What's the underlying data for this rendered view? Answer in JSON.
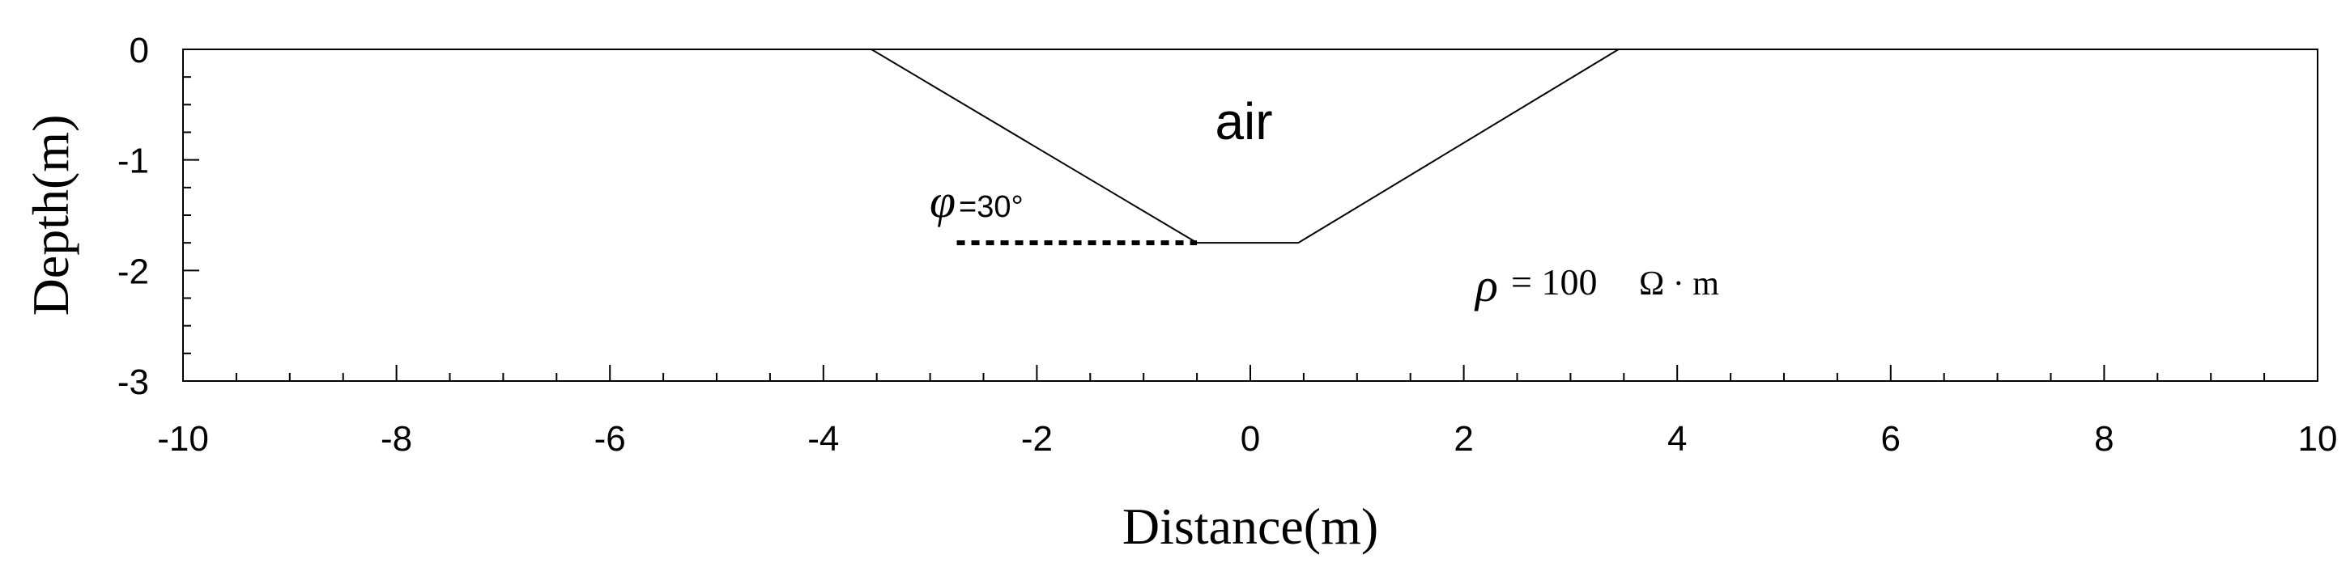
{
  "figure": {
    "xlabel": "Distance(m)",
    "ylabel": "Depth(m)",
    "xlim": [
      -10,
      10
    ],
    "ylim": [
      -3,
      0
    ],
    "x_ticks": [
      -10,
      -8,
      -6,
      -4,
      -2,
      0,
      2,
      4,
      6,
      8,
      10
    ],
    "y_ticks": [
      0,
      -1,
      -2,
      -3
    ],
    "x_minor_step": 0.5,
    "y_minor_step": 0.25,
    "surface_profile": [
      {
        "x": -10,
        "y": 0
      },
      {
        "x": -3.55,
        "y": 0
      },
      {
        "x": -0.5,
        "y": -1.75
      },
      {
        "x": 0.45,
        "y": -1.75
      },
      {
        "x": 3.45,
        "y": 0
      },
      {
        "x": 10,
        "y": 0
      }
    ],
    "slope_reference_line": {
      "x_from": -2.75,
      "x_to": -0.5,
      "y": -1.75,
      "style": "dotted"
    },
    "labels": {
      "air": "air",
      "angle_symbol": "φ",
      "angle_value": "=30°",
      "resistivity_symbol": "ρ",
      "resistivity_value": "= 100",
      "resistivity_unit": "Ω · m"
    },
    "colors": {
      "line": "#000000",
      "background": "#ffffff"
    }
  }
}
